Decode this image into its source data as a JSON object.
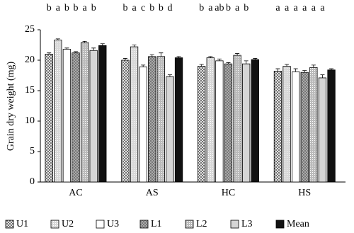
{
  "chart_data": {
    "type": "bar",
    "y_label": "Grain dry weight (mg)",
    "categories": [
      "AC",
      "AS",
      "HC",
      "HS"
    ],
    "series": [
      {
        "name": "U1",
        "color": "#555555",
        "values": [
          21.0,
          20.0,
          19.0,
          18.2
        ],
        "errors": [
          0.2,
          0.3,
          0.3,
          0.4
        ]
      },
      {
        "name": "U2",
        "color": "#d8d8d8",
        "values": [
          23.3,
          22.2,
          20.4,
          19.0
        ],
        "errors": [
          0.2,
          0.3,
          0.2,
          0.3
        ]
      },
      {
        "name": "U3",
        "color": "#ffffff",
        "values": [
          21.8,
          18.9,
          19.9,
          18.1
        ],
        "errors": [
          0.2,
          0.3,
          0.3,
          0.5
        ]
      },
      {
        "name": "L1",
        "color": "#777777",
        "values": [
          21.2,
          20.6,
          19.4,
          18.0
        ],
        "errors": [
          0.2,
          0.3,
          0.2,
          0.3
        ]
      },
      {
        "name": "L2",
        "color": "#bbbbbb",
        "values": [
          22.9,
          20.6,
          20.8,
          18.8
        ],
        "errors": [
          0.2,
          0.6,
          0.3,
          0.4
        ]
      },
      {
        "name": "L3",
        "color": "#d6d6d6",
        "values": [
          21.6,
          17.3,
          19.4,
          17.1
        ],
        "errors": [
          0.4,
          0.3,
          0.5,
          0.5
        ]
      },
      {
        "name": "Mean",
        "color": "#111111",
        "values": [
          22.4,
          20.4,
          20.1,
          18.4
        ],
        "errors": [
          0.3,
          0.2,
          0.2,
          0.2
        ]
      }
    ],
    "annotations": [
      [
        "b",
        "a",
        "b",
        "b",
        "a",
        "b"
      ],
      [
        "b",
        "a",
        "c",
        "b",
        "b",
        "d"
      ],
      [
        "b",
        "a",
        "ab",
        "b",
        "a",
        "b"
      ],
      [
        "a",
        "a",
        "a",
        "a",
        "a",
        "a"
      ]
    ],
    "ylim": [
      0,
      25
    ],
    "yticks": [
      0,
      5,
      10,
      15,
      20,
      25
    ],
    "grid": false,
    "legend": "bottom"
  }
}
